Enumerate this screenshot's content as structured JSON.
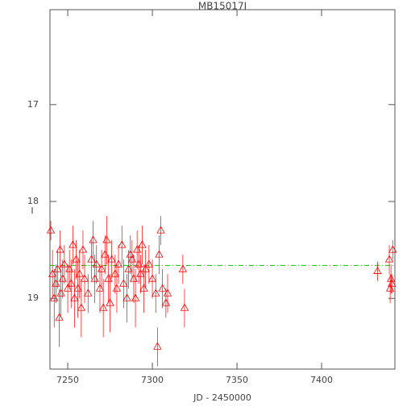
{
  "chart_data": {
    "type": "scatter",
    "title": "MB15017I",
    "x_label": "JD - 2450000",
    "y_label": "I",
    "xlim": [
      7239.5,
      7443.3
    ],
    "ylim": [
      19.73,
      16.02
    ],
    "xticks": [
      7250,
      7300,
      7350,
      7400
    ],
    "yticks": [
      17,
      18,
      19
    ],
    "color": "#ff0000",
    "reference_line": 18.66,
    "reference_color": "#00cc00",
    "x": [
      7240,
      7241,
      7242,
      7243,
      7244,
      7245,
      7245.5,
      7246,
      7247,
      7248,
      7250,
      7251,
      7252,
      7253,
      7254,
      7255,
      7256,
      7257,
      7258,
      7259,
      7260,
      7262,
      7264,
      7265,
      7266,
      7267,
      7269,
      7270,
      7271,
      7272,
      7273,
      7274,
      7275,
      7276,
      7278,
      7279,
      7280,
      7282,
      7283,
      7285,
      7286,
      7287,
      7288,
      7289,
      7290,
      7291,
      7292,
      7293,
      7294,
      7295,
      7296,
      7298,
      7300,
      7302,
      7303,
      7304,
      7305,
      7306,
      7308,
      7309,
      7318,
      7319,
      7433,
      7440,
      7440.5,
      7441,
      7441.5,
      7442
    ],
    "values": [
      18.3,
      18.75,
      19.0,
      18.85,
      18.7,
      19.2,
      18.5,
      18.95,
      18.8,
      18.65,
      18.9,
      18.7,
      18.85,
      18.45,
      19.0,
      18.6,
      18.9,
      18.75,
      19.1,
      18.5,
      18.8,
      18.95,
      18.6,
      18.4,
      18.8,
      18.65,
      18.9,
      18.7,
      19.1,
      18.55,
      18.4,
      18.8,
      19.05,
      18.6,
      18.75,
      18.9,
      18.65,
      18.45,
      18.85,
      19.0,
      18.7,
      18.55,
      18.6,
      18.8,
      19.0,
      18.5,
      18.65,
      18.75,
      18.45,
      18.9,
      18.7,
      18.65,
      18.8,
      18.95,
      19.5,
      18.55,
      18.3,
      18.9,
      19.05,
      18.95,
      18.7,
      19.1,
      18.72,
      18.6,
      18.9,
      18.8,
      18.85,
      18.5
    ],
    "errors": [
      0.1,
      0.25,
      0.3,
      0.2,
      0.2,
      0.3,
      0.2,
      0.25,
      0.2,
      0.2,
      0.25,
      0.2,
      0.25,
      0.2,
      0.3,
      0.2,
      0.3,
      0.25,
      0.3,
      0.2,
      0.25,
      0.2,
      0.2,
      0.2,
      0.25,
      0.2,
      0.25,
      0.2,
      0.3,
      0.2,
      0.25,
      0.25,
      0.3,
      0.2,
      0.2,
      0.25,
      0.2,
      0.2,
      0.25,
      0.25,
      0.2,
      0.2,
      0.2,
      0.25,
      0.3,
      0.2,
      0.2,
      0.2,
      0.2,
      0.25,
      0.2,
      0.2,
      0.2,
      0.2,
      0.2,
      0.2,
      0.15,
      0.2,
      0.15,
      0.2,
      0.15,
      0.2,
      0.1,
      0.15,
      0.15,
      0.15,
      0.1,
      0.1
    ]
  }
}
